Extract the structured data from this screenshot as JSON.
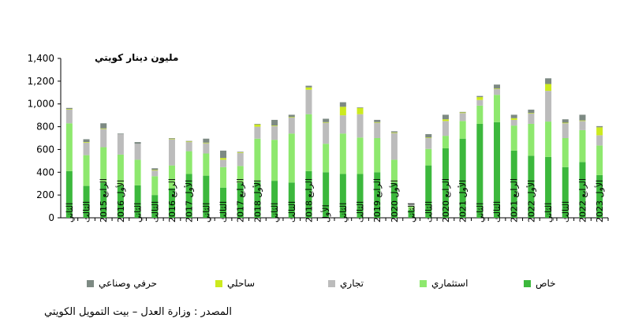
{
  "chart_data": {
    "type": "bar",
    "stacked": true,
    "unit_label": "مليون دينار كويتي",
    "ylim": [
      0,
      1400
    ],
    "yticks": [
      "0",
      "200",
      "400",
      "600",
      "800",
      "1,000",
      "1,200",
      "1,400"
    ],
    "grid": false,
    "legend_position": "bottom",
    "categories": [
      "الثاني",
      "الثالث",
      "الرابع 2015",
      "الأول 2016",
      "الثاني",
      "الثالث",
      "الرابع 2016",
      "الأول 2017",
      "الثاني",
      "الثالث",
      "الرابع 2017",
      "الأول 2018",
      "الثاني",
      "الثالث",
      "الرابع 2018",
      "الأول",
      "الثاني",
      "الثالث",
      "الرابع 2019",
      "الأول 2020",
      "الثاني",
      "الثالث",
      "الرابع 2020",
      "الأول 2021",
      "الثاني",
      "الثالث",
      "الرابع 2021",
      "الأول 2022",
      "الثاني",
      "الثالث",
      "الرابع 2022",
      "الأول 2023"
    ],
    "series": [
      {
        "name": "خاص",
        "color": "#3cb83c",
        "values": [
          410,
          280,
          310,
          285,
          285,
          200,
          260,
          385,
          370,
          265,
          305,
          315,
          325,
          310,
          410,
          400,
          385,
          385,
          400,
          310,
          70,
          460,
          610,
          695,
          825,
          840,
          590,
          545,
          535,
          445,
          490,
          375
        ]
      },
      {
        "name": "استثماري",
        "color": "#8ee86e",
        "values": [
          420,
          270,
          310,
          270,
          225,
          165,
          200,
          200,
          195,
          180,
          150,
          380,
          360,
          430,
          500,
          250,
          355,
          320,
          300,
          200,
          35,
          145,
          110,
          155,
          160,
          240,
          220,
          280,
          310,
          255,
          280,
          260
        ]
      },
      {
        "name": "تجاري",
        "color": "#bcbcbc",
        "values": [
          120,
          110,
          160,
          180,
          140,
          50,
          230,
          80,
          90,
          65,
          115,
          105,
          120,
          140,
          215,
          185,
          160,
          205,
          135,
          235,
          7,
          95,
          130,
          70,
          50,
          50,
          50,
          90,
          270,
          130,
          80,
          90
        ]
      },
      {
        "name": "ساحلي",
        "color": "#ccea1e",
        "values": [
          5,
          5,
          5,
          0,
          0,
          5,
          5,
          5,
          5,
          15,
          5,
          20,
          5,
          5,
          20,
          5,
          75,
          55,
          5,
          5,
          0,
          5,
          15,
          5,
          25,
          5,
          15,
          5,
          60,
          5,
          5,
          70
        ]
      },
      {
        "name": "حرفي وصناعي",
        "color": "#7d8a83",
        "values": [
          10,
          25,
          45,
          5,
          15,
          15,
          5,
          5,
          35,
          65,
          5,
          5,
          50,
          20,
          15,
          30,
          40,
          5,
          20,
          10,
          5,
          30,
          40,
          5,
          10,
          35,
          30,
          30,
          50,
          30,
          50,
          10
        ]
      }
    ]
  },
  "source": "المصدر : وزارة العدل – بيت التمويل الكويتي"
}
